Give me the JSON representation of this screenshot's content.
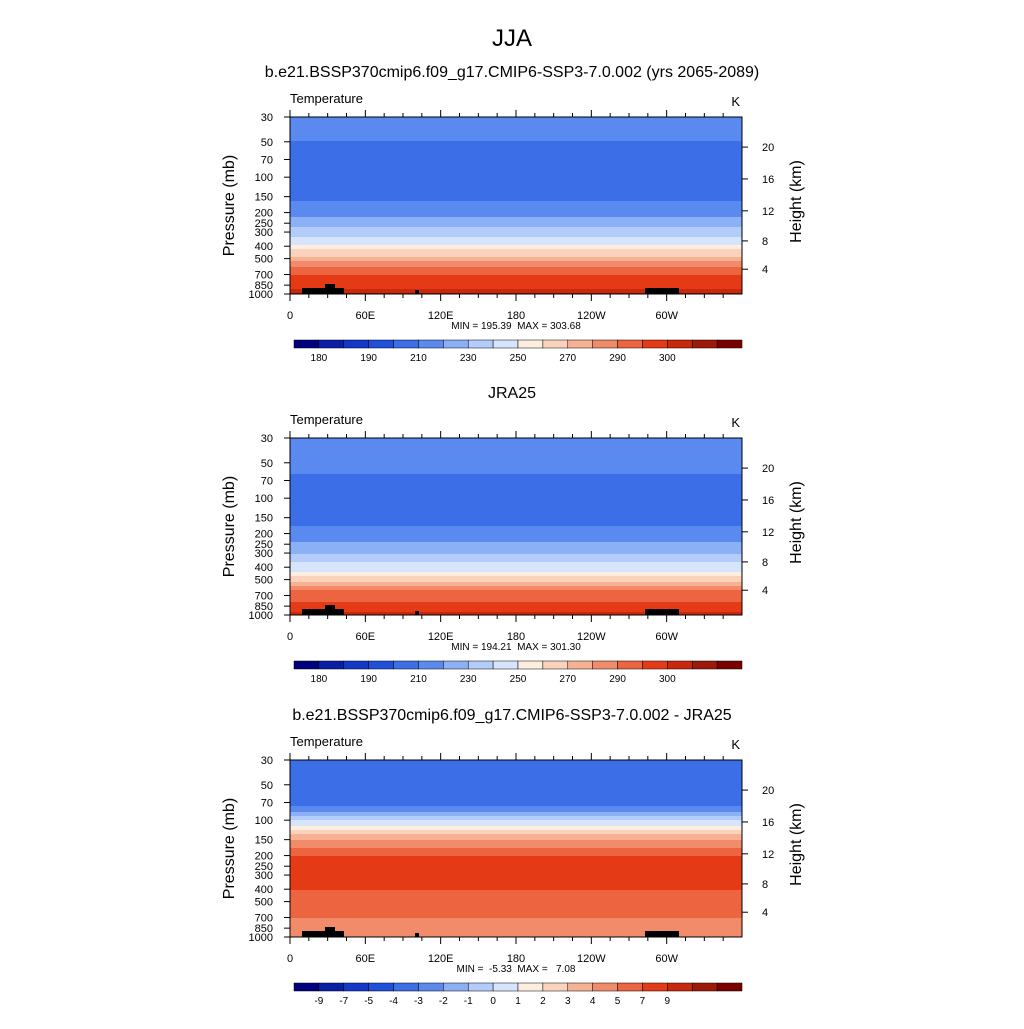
{
  "page_title": "JJA",
  "panel_common": {
    "variable": "Temperature",
    "units": "K",
    "ylabel": "Pressure (mb)",
    "ylabel_right": "Height (km)",
    "pressure_ticks": [
      "30",
      "50",
      "70",
      "100",
      "150",
      "200",
      "250",
      "300",
      "400",
      "500",
      "700",
      "850",
      "1000"
    ],
    "height_ticks": [
      "4",
      "8",
      "12",
      "16",
      "20"
    ],
    "lon_ticks": [
      "0",
      "60E",
      "120E",
      "180",
      "120W",
      "60W"
    ]
  },
  "colors": {
    "abs_levels": [
      "#00007f",
      "#0a1fa6",
      "#1438c8",
      "#1e50dc",
      "#3c6ee8",
      "#5a8af0",
      "#8cb0f5",
      "#b4ccfa",
      "#d6e4fc",
      "#fdeee0",
      "#fbd3bc",
      "#f7b193",
      "#f28b69",
      "#ec6440",
      "#e43b16",
      "#c8280c",
      "#9e1a08",
      "#7a0000"
    ],
    "diff_levels": [
      "#00007f",
      "#0a1fa6",
      "#1438c8",
      "#1e50dc",
      "#3c6ee8",
      "#5a8af0",
      "#8cb0f5",
      "#b4ccfa",
      "#d6e4fc",
      "#fdeee0",
      "#fbd3bc",
      "#f7b193",
      "#f28b69",
      "#ec6440",
      "#e43b16",
      "#c8280c",
      "#9e1a08",
      "#7a0000"
    ],
    "topography": "#000000"
  },
  "chart_data": [
    {
      "type": "heatmap",
      "title": "b.e21.BSSP370cmip6.f09_g17.CMIP6-SSP3-7.0.002 (yrs 2065-2089)",
      "stats_text": "MIN = 195.39  MAX = 303.68",
      "min": 195.39,
      "max": 303.68,
      "x_range": [
        0,
        360
      ],
      "pressure_levels": [
        30,
        50,
        70,
        100,
        150,
        200,
        250,
        300,
        400,
        500,
        700,
        850,
        1000
      ],
      "zonal_mean_temperature_K": [
        214,
        210,
        205,
        203,
        208,
        217,
        226,
        235,
        252,
        262,
        279,
        287,
        296
      ],
      "colorbar_labels": [
        "180",
        "190",
        "210",
        "230",
        "250",
        "270",
        "290",
        "300"
      ]
    },
    {
      "type": "heatmap",
      "title": "JRA25",
      "stats_text": "MIN = 194.21  MAX = 301.30",
      "min": 194.21,
      "max": 301.3,
      "x_range": [
        0,
        360
      ],
      "pressure_levels": [
        30,
        50,
        70,
        100,
        150,
        200,
        250,
        300,
        400,
        500,
        700,
        850,
        1000
      ],
      "zonal_mean_temperature_K": [
        218,
        214,
        208,
        203,
        206,
        213,
        222,
        230,
        246,
        258,
        275,
        284,
        293
      ],
      "colorbar_labels": [
        "180",
        "190",
        "210",
        "230",
        "250",
        "270",
        "290",
        "300"
      ]
    },
    {
      "type": "heatmap",
      "title": "b.e21.BSSP370cmip6.f09_g17.CMIP6-SSP3-7.0.002 - JRA25",
      "stats_text": "MIN =  -5.33  MAX =   7.08",
      "min": -5.33,
      "max": 7.08,
      "x_range": [
        0,
        360
      ],
      "pressure_levels": [
        30,
        50,
        70,
        100,
        150,
        200,
        250,
        300,
        400,
        500,
        700,
        850,
        1000
      ],
      "zonal_mean_difference_K": [
        -4,
        -4.5,
        -5,
        -1,
        3,
        5,
        5,
        5,
        5,
        4.5,
        4,
        3.5,
        3
      ],
      "colorbar_labels": [
        "-9",
        "-7",
        "-5",
        "-4",
        "-3",
        "-2",
        "-1",
        "0",
        "1",
        "2",
        "3",
        "4",
        "5",
        "7",
        "9"
      ]
    }
  ]
}
